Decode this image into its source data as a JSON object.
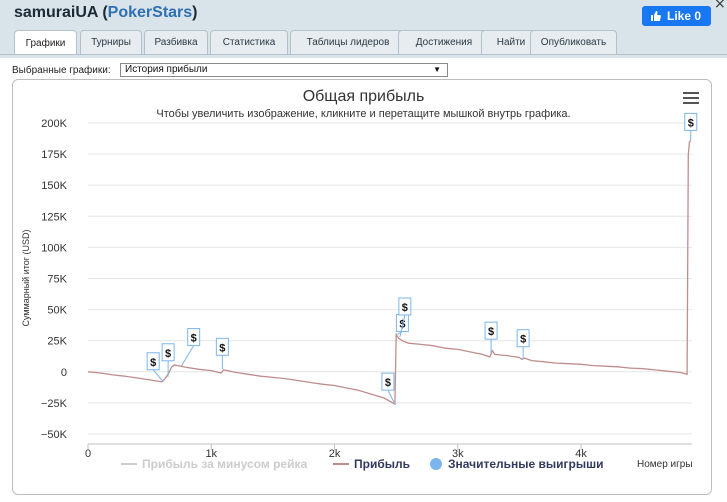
{
  "window": {
    "player": "samuraiUA",
    "site": "PokerStars",
    "close": "×",
    "fb_like": "Like 0"
  },
  "tabs": [
    {
      "label": "Графики",
      "active": true
    },
    {
      "label": "Турниры"
    },
    {
      "label": "Разбивка"
    },
    {
      "label": "Статистика"
    },
    {
      "label": "Таблицы лидеров"
    },
    {
      "label": "Достижения"
    },
    {
      "label": "Найти"
    },
    {
      "label": "Опубликовать"
    }
  ],
  "selector": {
    "label": "Выбранные графики:",
    "value": "История прибыли"
  },
  "chart_data": {
    "type": "line",
    "title": "Общая прибыль",
    "subtitle": "Чтобы увеличить изображение, кликните и перетащите мышкой внутрь графика.",
    "ylabel": "Суммарный итог (USD)",
    "xlabel": "Номер игры",
    "xlim": [
      0,
      4900
    ],
    "ylim": [
      -50000,
      200000
    ],
    "xticks": [
      {
        "v": 0,
        "label": "0"
      },
      {
        "v": 1000,
        "label": "1k"
      },
      {
        "v": 2000,
        "label": "2k"
      },
      {
        "v": 3000,
        "label": "3k"
      },
      {
        "v": 4000,
        "label": "4k"
      }
    ],
    "yticks": [
      {
        "v": 200000,
        "label": "200K"
      },
      {
        "v": 175000,
        "label": "175K"
      },
      {
        "v": 150000,
        "label": "150K"
      },
      {
        "v": 125000,
        "label": "125K"
      },
      {
        "v": 100000,
        "label": "100K"
      },
      {
        "v": 75000,
        "label": "75K"
      },
      {
        "v": 50000,
        "label": "50K"
      },
      {
        "v": 25000,
        "label": "25K"
      },
      {
        "v": 0,
        "label": "0"
      },
      {
        "v": -25000,
        "label": "−25K"
      },
      {
        "v": -50000,
        "label": "−50K"
      }
    ],
    "grid": true,
    "legend_position": "bottom",
    "series": [
      {
        "name": "Прибыль за минусом рейка",
        "color": "#d4d4d4",
        "visible": false,
        "x": [],
        "y": []
      },
      {
        "name": "Прибыль",
        "color": "#c08d8d",
        "visible": true,
        "x": [
          0,
          100,
          200,
          300,
          400,
          500,
          560,
          600,
          620,
          650,
          680,
          700,
          800,
          900,
          1000,
          1080,
          1100,
          1200,
          1300,
          1400,
          1500,
          1600,
          1700,
          1800,
          1900,
          2000,
          2100,
          2200,
          2300,
          2400,
          2490,
          2500,
          2520,
          2550,
          2600,
          2700,
          2800,
          2900,
          3000,
          3100,
          3200,
          3260,
          3280,
          3300,
          3400,
          3500,
          3520,
          3540,
          3600,
          3700,
          3800,
          3900,
          4000,
          4100,
          4200,
          4300,
          4400,
          4500,
          4600,
          4700,
          4800,
          4860,
          4870,
          4880,
          4890
        ],
        "y": [
          0,
          -1000,
          -2500,
          -3500,
          -5000,
          -6500,
          -7500,
          -8000,
          -6000,
          -2000,
          4000,
          5500,
          3500,
          2000,
          1000,
          -1000,
          1500,
          -500,
          -2000,
          -3500,
          -4500,
          -5500,
          -7000,
          -8500,
          -10000,
          -11000,
          -13000,
          -15000,
          -18000,
          -21000,
          -26000,
          30000,
          27000,
          25000,
          23000,
          22000,
          21000,
          19000,
          18000,
          16000,
          14000,
          12000,
          17000,
          14000,
          13000,
          11500,
          10000,
          11000,
          9000,
          8000,
          7000,
          6500,
          6000,
          5000,
          4500,
          4000,
          3000,
          2500,
          1500,
          500,
          -500,
          -2000,
          175000,
          185000,
          186000
        ]
      },
      {
        "name": "Значительные выигрыши",
        "color": "#7cb5ec",
        "visible": true,
        "marker_symbol": "$",
        "x": [
          610,
          650,
          760,
          1090,
          2490,
          2510,
          2530,
          3270,
          3530,
          4890
        ],
        "y": [
          -8000,
          -4000,
          5000,
          2000,
          -26000,
          30000,
          28000,
          15000,
          10500,
          186000
        ]
      }
    ]
  }
}
